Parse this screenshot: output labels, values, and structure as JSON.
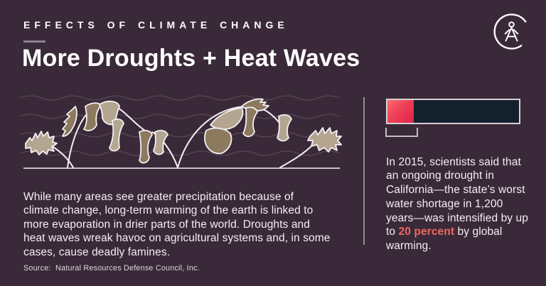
{
  "header": {
    "eyebrow": "EFFECTS OF CLIMATE CHANGE",
    "title": "More Droughts + Heat Waves"
  },
  "logo": {
    "icon": "circle-monogram-figure-a-icon"
  },
  "illustration": {
    "icon": "wilting-plants-heat-waves-illustration"
  },
  "main_text": {
    "paragraph": "While many areas see greater precipitation because of climate change, long-term warming of the earth is linked to more evaporation in drier parts of the world. Droughts and heat waves wreak havoc on agricultural systems and, in some cases, cause deadly famines.",
    "source": "Source:  Natural Resources Defense Council, Inc."
  },
  "fact": {
    "pre": "In 2015, scientists said that an ongoing drought in California—the state’s worst water shortage in 1,200 years—was intensified by up to ",
    "highlight": "20 percent",
    "post": " by global warming."
  },
  "chart_data": {
    "type": "bar",
    "categories": [
      "California 2015 drought intensity"
    ],
    "series": [
      {
        "name": "intensified by global warming",
        "value": 20,
        "color": "#ee3050"
      },
      {
        "name": "remaining drought intensity",
        "value": 80,
        "color": "#15202d"
      }
    ],
    "unit": "percent",
    "total": 100,
    "bracket_marks_segment": "intensified by global warming"
  },
  "colors": {
    "background": "#3a2a39",
    "text": "#f4eff2",
    "highlight": "#f0685f",
    "bar_border": "#d6d0d5",
    "bar_navy": "#15202d",
    "bar_red_start": "#f76b6f",
    "bar_red_end": "#de2346",
    "leaf_tan": "#b3a590",
    "leaf_brown": "#8d7a5e",
    "line_gray": "#978b95"
  }
}
